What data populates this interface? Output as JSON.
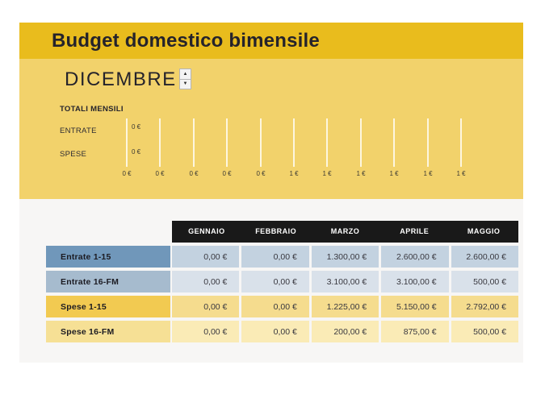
{
  "header": {
    "title": "Budget domestico bimensile"
  },
  "month_selector": {
    "value": "DICEMBRE",
    "spinner_up_icon": "▲",
    "spinner_down_icon": "▼"
  },
  "summary": {
    "title": "TOTALI MENSILI",
    "entrate_label": "ENTRATE",
    "entrate_value": "0 €",
    "spese_label": "SPESE",
    "spese_value": "0 €",
    "month_totals": [
      "0 €",
      "0 €",
      "0 €",
      "0 €",
      "0 €",
      "1 €",
      "1 €",
      "1 €",
      "1 €",
      "1 €",
      "1 €"
    ]
  },
  "chart_data": {
    "type": "bar",
    "title": "TOTALI MENSILI",
    "series": [
      {
        "name": "ENTRATE",
        "visible_value": "0 €"
      },
      {
        "name": "SPESE",
        "visible_value": "0 €"
      }
    ],
    "column_labels": [
      "0 €",
      "0 €",
      "0 €",
      "0 €",
      "0 €",
      "1 €",
      "1 €",
      "1 €",
      "1 €",
      "1 €",
      "1 €"
    ],
    "column_values_eur": [
      0,
      0,
      0,
      0,
      0,
      1,
      1,
      1,
      1,
      1,
      1
    ],
    "legend_position": "left",
    "grid": "vertical-lines"
  },
  "table": {
    "columns": [
      "GENNAIO",
      "FEBBRAIO",
      "MARZO",
      "APRILE",
      "MAGGIO"
    ],
    "rows": [
      {
        "label": "Entrate 1-15",
        "values": [
          "0,00 €",
          "0,00 €",
          "1.300,00 €",
          "2.600,00 €",
          "2.600,00 €"
        ]
      },
      {
        "label": "Entrate 16-FM",
        "values": [
          "0,00 €",
          "0,00 €",
          "3.100,00 €",
          "3.100,00 €",
          "500,00 €"
        ]
      },
      {
        "label": "Spese 1-15",
        "values": [
          "0,00 €",
          "0,00 €",
          "1.225,00 €",
          "5.150,00 €",
          "2.792,00 €"
        ]
      },
      {
        "label": "Spese 16-FM",
        "values": [
          "0,00 €",
          "0,00 €",
          "200,00 €",
          "875,00 €",
          "500,00 €"
        ]
      }
    ]
  },
  "colors": {
    "band_dark_gold": "#E9BC1D",
    "band_light_gold": "#F2D26B",
    "table_header_black": "#191919",
    "entrate1_label": "#7097BA",
    "entrate1_cell": "#C3D2E0",
    "entrate2_label": "#A6BBCE",
    "entrate2_cell": "#D9E1EA",
    "spese1_label": "#F2CA51",
    "spese1_cell": "#F5DC8E",
    "spese2_label": "#F6E095",
    "spese2_cell": "#FAEBB6",
    "panel_gray": "#F7F6F5"
  }
}
